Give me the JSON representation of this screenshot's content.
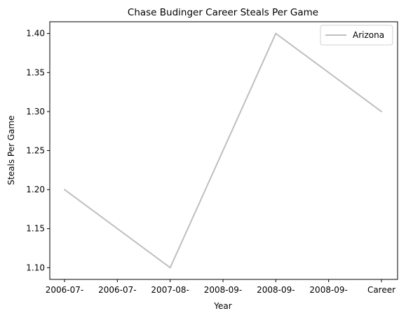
{
  "chart_data": {
    "type": "line",
    "title": "Chase Budinger Career Steals Per Game",
    "xlabel": "Year",
    "ylabel": "Steals Per Game",
    "categories": [
      "2006-07-",
      "2006-07-",
      "2007-08-",
      "2008-09-",
      "2008-09-",
      "2008-09-",
      "Career"
    ],
    "series": [
      {
        "name": "Arizona",
        "color": "#bfbfbf",
        "points": [
          {
            "index": 0,
            "value": 1.2
          },
          {
            "index": 2,
            "value": 1.1
          },
          {
            "index": 4,
            "value": 1.4
          },
          {
            "index": 6,
            "value": 1.3
          }
        ]
      }
    ],
    "ylim": [
      1.085,
      1.415
    ],
    "yticks": [
      "1.10",
      "1.15",
      "1.20",
      "1.25",
      "1.30",
      "1.35",
      "1.40"
    ],
    "grid": false,
    "legend_position": "top-right"
  }
}
